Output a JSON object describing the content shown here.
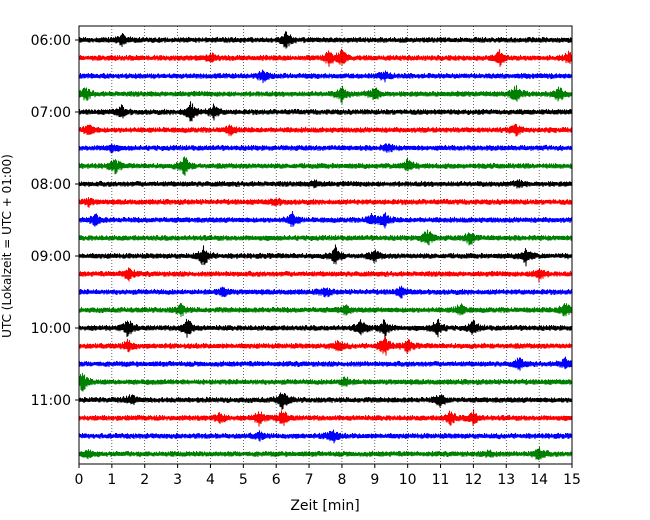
{
  "chart_data": {
    "type": "line",
    "xlabel": "Zeit  [min]",
    "ylabel": "UTC (Lokalzeit = UTC + 01:00)",
    "xlim": [
      0,
      15
    ],
    "x_ticks": [
      "0",
      "1",
      "2",
      "3",
      "4",
      "5",
      "6",
      "7",
      "8",
      "9",
      "10",
      "11",
      "12",
      "13",
      "14",
      "15"
    ],
    "y_ticks": [
      "06:00",
      "07:00",
      "08:00",
      "09:00",
      "10:00",
      "11:00"
    ],
    "vertical_grid": true,
    "grid_style": "dotted",
    "colors_cycle": [
      "#000000",
      "#ff0000",
      "#0000ff",
      "#008000"
    ],
    "trace_interval_minutes": 15,
    "series": [
      {
        "start": "06:00",
        "color": "#000000",
        "events": [
          [
            1.3,
            0.5
          ],
          [
            6.3,
            0.8
          ]
        ]
      },
      {
        "start": "06:15",
        "color": "#ff0000",
        "events": [
          [
            4.0,
            0.4
          ],
          [
            7.6,
            0.6
          ],
          [
            8.0,
            0.7
          ],
          [
            12.8,
            0.6
          ],
          [
            14.9,
            0.5
          ]
        ]
      },
      {
        "start": "06:30",
        "color": "#0000ff",
        "events": [
          [
            5.6,
            0.5
          ],
          [
            9.3,
            0.4
          ]
        ]
      },
      {
        "start": "06:45",
        "color": "#008000",
        "events": [
          [
            0.2,
            0.6
          ],
          [
            8.0,
            0.7
          ],
          [
            9.0,
            0.6
          ],
          [
            13.3,
            0.7
          ],
          [
            14.6,
            0.7
          ]
        ]
      },
      {
        "start": "07:00",
        "color": "#000000",
        "events": [
          [
            1.3,
            0.5
          ],
          [
            3.4,
            0.9
          ],
          [
            4.1,
            0.6
          ]
        ]
      },
      {
        "start": "07:15",
        "color": "#ff0000",
        "events": [
          [
            0.3,
            0.5
          ],
          [
            4.6,
            0.4
          ],
          [
            13.3,
            0.5
          ]
        ]
      },
      {
        "start": "07:30",
        "color": "#0000ff",
        "events": [
          [
            1.0,
            0.3
          ],
          [
            9.4,
            0.3
          ]
        ]
      },
      {
        "start": "07:45",
        "color": "#008000",
        "events": [
          [
            1.1,
            0.6
          ],
          [
            3.2,
            0.9
          ],
          [
            10.0,
            0.6
          ]
        ]
      },
      {
        "start": "08:00",
        "color": "#000000",
        "events": [
          [
            7.2,
            0.3
          ],
          [
            13.4,
            0.3
          ]
        ]
      },
      {
        "start": "08:15",
        "color": "#ff0000",
        "events": [
          [
            0.3,
            0.3
          ],
          [
            6.0,
            0.3
          ]
        ]
      },
      {
        "start": "08:30",
        "color": "#0000ff",
        "events": [
          [
            0.5,
            0.5
          ],
          [
            6.5,
            0.6
          ],
          [
            8.9,
            0.5
          ],
          [
            9.3,
            0.6
          ]
        ]
      },
      {
        "start": "08:45",
        "color": "#008000",
        "events": [
          [
            10.6,
            0.8
          ],
          [
            11.9,
            0.6
          ]
        ]
      },
      {
        "start": "09:00",
        "color": "#000000",
        "events": [
          [
            3.8,
            0.9
          ],
          [
            7.8,
            0.8
          ],
          [
            9.0,
            0.5
          ],
          [
            13.6,
            0.7
          ]
        ]
      },
      {
        "start": "09:15",
        "color": "#ff0000",
        "events": [
          [
            1.5,
            0.6
          ],
          [
            14.0,
            0.6
          ]
        ]
      },
      {
        "start": "09:30",
        "color": "#0000ff",
        "events": [
          [
            4.4,
            0.4
          ],
          [
            7.5,
            0.4
          ],
          [
            9.8,
            0.4
          ]
        ]
      },
      {
        "start": "09:45",
        "color": "#008000",
        "events": [
          [
            3.1,
            0.5
          ],
          [
            8.1,
            0.4
          ],
          [
            11.6,
            0.5
          ],
          [
            14.8,
            0.7
          ]
        ]
      },
      {
        "start": "10:00",
        "color": "#000000",
        "events": [
          [
            1.5,
            0.8
          ],
          [
            3.3,
            0.9
          ],
          [
            8.6,
            0.7
          ],
          [
            9.3,
            0.8
          ],
          [
            10.9,
            0.8
          ],
          [
            12.0,
            0.6
          ]
        ]
      },
      {
        "start": "10:15",
        "color": "#ff0000",
        "events": [
          [
            1.5,
            0.5
          ],
          [
            7.9,
            0.5
          ],
          [
            9.3,
            0.9
          ],
          [
            10.0,
            0.5
          ]
        ]
      },
      {
        "start": "10:30",
        "color": "#0000ff",
        "events": [
          [
            13.4,
            0.5
          ],
          [
            14.8,
            0.5
          ]
        ]
      },
      {
        "start": "10:45",
        "color": "#008000",
        "events": [
          [
            0.1,
            0.8
          ],
          [
            8.1,
            0.4
          ]
        ]
      },
      {
        "start": "11:00",
        "color": "#000000",
        "events": [
          [
            1.6,
            0.5
          ],
          [
            6.2,
            0.9
          ],
          [
            11.0,
            0.6
          ]
        ]
      },
      {
        "start": "11:15",
        "color": "#ff0000",
        "events": [
          [
            4.3,
            0.5
          ],
          [
            5.5,
            0.6
          ],
          [
            6.2,
            0.7
          ],
          [
            11.3,
            0.6
          ],
          [
            12.0,
            0.6
          ]
        ]
      },
      {
        "start": "11:30",
        "color": "#0000ff",
        "events": [
          [
            5.5,
            0.3
          ],
          [
            7.7,
            0.7
          ]
        ]
      },
      {
        "start": "11:45",
        "color": "#008000",
        "events": [
          [
            0.3,
            0.3
          ],
          [
            12.5,
            0.3
          ],
          [
            14.0,
            0.6
          ]
        ]
      }
    ]
  }
}
